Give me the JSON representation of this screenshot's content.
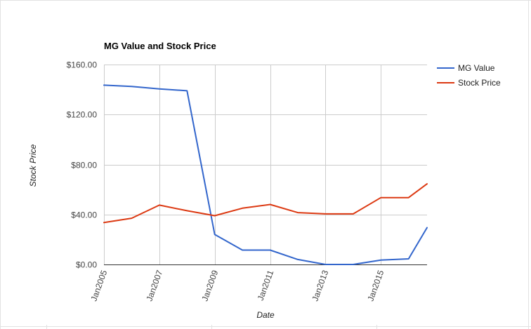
{
  "chart_data": {
    "type": "line",
    "title": "MG Value and Stock Price",
    "xlabel": "Date",
    "ylabel": "Stock Price",
    "x": [
      "2005-01",
      "2006-01",
      "2007-01",
      "2008-01",
      "2009-01",
      "2010-01",
      "2011-01",
      "2012-01",
      "2013-01",
      "2014-01",
      "2015-01",
      "2016-01",
      "2016-09"
    ],
    "x_ticks": [
      "Jan2005",
      "Jan2007",
      "Jan2009",
      "Jan2011",
      "Jan2013",
      "Jan2015"
    ],
    "y_ticks": [
      "$0.00",
      "$40.00",
      "$80.00",
      "$120.00",
      "$160.00"
    ],
    "ylim": [
      0,
      160
    ],
    "xlim": [
      "2005-01",
      "2016-09"
    ],
    "grid": true,
    "legend_position": "right",
    "series": [
      {
        "name": "MG Value",
        "color": "#3366cc",
        "values": [
          143.5,
          142.5,
          140.5,
          139.0,
          24.0,
          11.5,
          11.5,
          4.0,
          0.0,
          0.0,
          3.5,
          4.5,
          29.5
        ]
      },
      {
        "name": "Stock Price",
        "color": "#dc3912",
        "values": [
          33.5,
          37.0,
          47.5,
          43.0,
          39.0,
          45.0,
          48.0,
          41.5,
          40.5,
          40.5,
          53.5,
          53.5,
          64.5
        ]
      }
    ]
  }
}
